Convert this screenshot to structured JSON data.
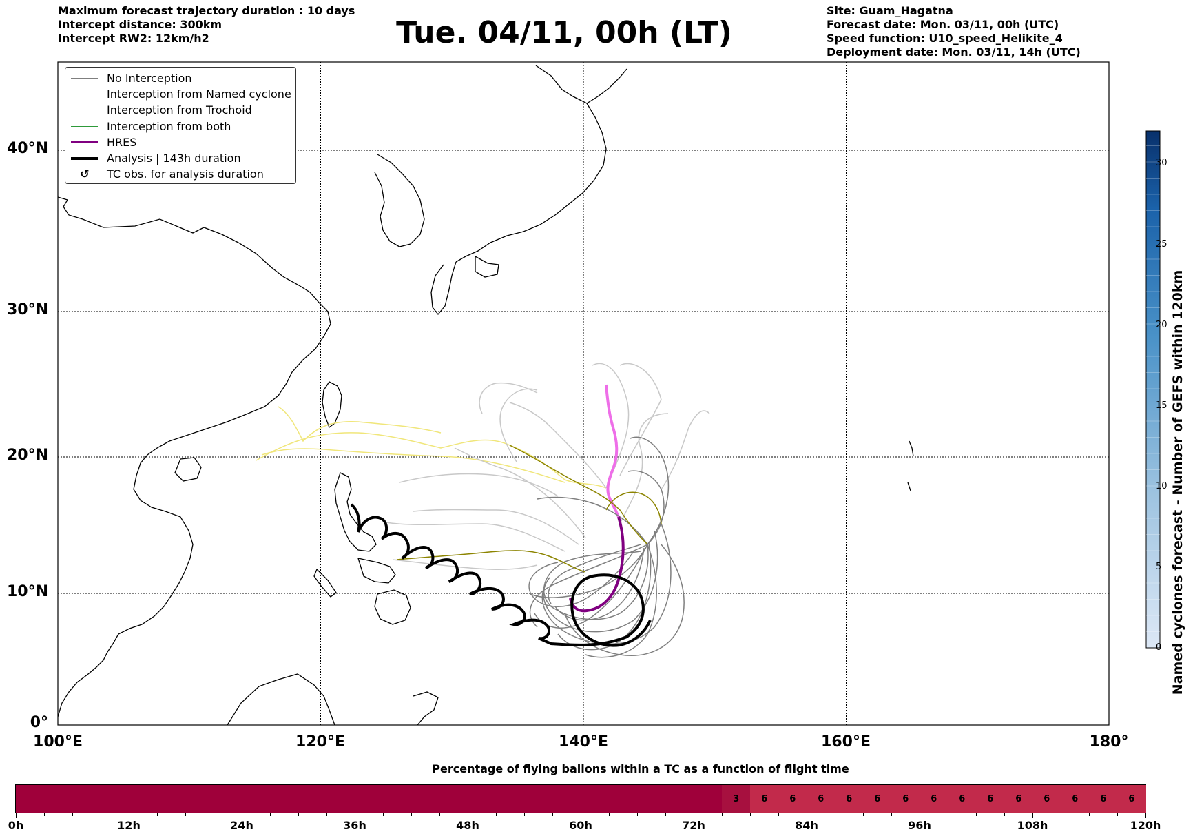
{
  "header": {
    "left_lines": [
      "Maximum forecast trajectory duration : 10 days",
      "Intercept distance: 300km",
      "Intercept RW2: 12km/h2"
    ],
    "title": "Tue. 04/11, 00h (LT)",
    "right_lines": [
      "Site: Guam_Hagatna",
      "Forecast date: Mon. 03/11, 00h (UTC)",
      "Speed function: U10_speed_Helikite_4",
      "Deployment date: Mon. 03/11, 14h (UTC)"
    ]
  },
  "map": {
    "lon_ticks": [
      "100°E",
      "120°E",
      "140°E",
      "160°E",
      "180°"
    ],
    "lat_ticks": [
      "0°",
      "10°N",
      "20°N",
      "30°N",
      "40°N"
    ],
    "lon_range": [
      100,
      180
    ],
    "lat_range": [
      0,
      45
    ],
    "grid": true,
    "colors": {
      "no_interception": "#7f7f7f",
      "named_cyclone": "#e8502a",
      "trochoid": "#8c8400",
      "both": "#2e9a3a",
      "hres": "#800080",
      "analysis": "#000000",
      "faded_gray": "#c8c8c8",
      "faded_yellow": "#f0e67a",
      "faded_pink": "#ee6ee8"
    }
  },
  "legend": {
    "placement": "upper-left",
    "items": [
      {
        "label": "No Interception",
        "kind": "thin",
        "color": "#7f7f7f"
      },
      {
        "label": "Interception from Named cyclone",
        "kind": "thin",
        "color": "#e8502a"
      },
      {
        "label": "Interception from Trochoid",
        "kind": "thin",
        "color": "#8c8400"
      },
      {
        "label": "Interception from both",
        "kind": "thin",
        "color": "#2e9a3a"
      },
      {
        "label": "HRES",
        "kind": "thick",
        "color": "#800080"
      },
      {
        "label": "Analysis | 143h duration",
        "kind": "thick",
        "color": "#000000"
      },
      {
        "label": "TC obs. for analysis duration",
        "kind": "marker",
        "symbol": "↺"
      }
    ]
  },
  "colorbar": {
    "title": "Named cyclones forecast - Number of GEFS within 120km",
    "ticks": [
      "0",
      "5",
      "10",
      "15",
      "20",
      "25",
      "30"
    ],
    "range": [
      0,
      32
    ]
  },
  "strip": {
    "title": "Percentage of flying ballons within a TC as a function of flight time",
    "time_labels": [
      "0h",
      "12h",
      "24h",
      "36h",
      "48h",
      "60h",
      "72h",
      "84h",
      "96h",
      "108h",
      "120h"
    ],
    "cell_hours": 3,
    "values_pct": [
      0,
      0,
      0,
      0,
      0,
      0,
      0,
      0,
      0,
      0,
      0,
      0,
      0,
      0,
      0,
      0,
      0,
      0,
      0,
      0,
      0,
      0,
      0,
      0,
      0,
      3,
      6,
      6,
      6,
      6,
      6,
      6,
      6,
      6,
      6,
      6,
      6,
      6,
      6,
      6
    ],
    "labels": [
      "",
      "",
      "",
      "",
      "",
      "",
      "",
      "",
      "",
      "",
      "",
      "",
      "",
      "",
      "",
      "",
      "",
      "",
      "",
      "",
      "",
      "",
      "",
      "",
      "",
      "3",
      "6",
      "6",
      "6",
      "6",
      "6",
      "6",
      "6",
      "6",
      "6",
      "6",
      "6",
      "6",
      "6",
      "6"
    ]
  }
}
